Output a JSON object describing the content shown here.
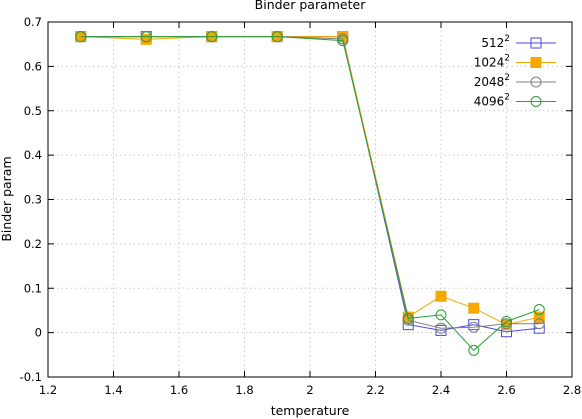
{
  "chart_data": {
    "type": "line",
    "title": "Binder parameter",
    "xlabel": "temperature",
    "ylabel": "Binder param",
    "xlim": [
      1.2,
      2.8
    ],
    "ylim": [
      -0.1,
      0.7
    ],
    "xticks": [
      "1.2",
      "1.4",
      "1.6",
      "1.8",
      "2",
      "2.2",
      "2.4",
      "2.6",
      "2.8"
    ],
    "yticks": [
      "-0.1",
      "0",
      "0.1",
      "0.2",
      "0.3",
      "0.4",
      "0.5",
      "0.6",
      "0.7"
    ],
    "grid": true,
    "legend_position": "top-right",
    "x": [
      1.3,
      1.5,
      1.7,
      1.9,
      2.1,
      2.3,
      2.4,
      2.5,
      2.6,
      2.7
    ],
    "series": [
      {
        "name": "512",
        "exponent": "2",
        "color": "#4a4ad6",
        "marker": "open-square",
        "values": [
          0.667,
          0.667,
          0.667,
          0.667,
          0.667,
          0.018,
          0.005,
          0.018,
          0.002,
          0.01
        ]
      },
      {
        "name": "1024",
        "exponent": "2",
        "color": "#f5a800",
        "marker": "filled-square",
        "values": [
          0.667,
          0.661,
          0.667,
          0.667,
          0.667,
          0.035,
          0.082,
          0.055,
          0.018,
          0.035
        ]
      },
      {
        "name": "2048",
        "exponent": "2",
        "color": "#808080",
        "marker": "open-circle",
        "values": [
          0.667,
          0.667,
          0.667,
          0.667,
          0.662,
          0.028,
          0.01,
          0.012,
          0.02,
          0.02
        ]
      },
      {
        "name": "4096",
        "exponent": "2",
        "color": "#2e9e3a",
        "marker": "open-circle",
        "values": [
          0.667,
          0.667,
          0.667,
          0.667,
          0.658,
          0.032,
          0.04,
          -0.04,
          0.025,
          0.052
        ]
      }
    ]
  }
}
